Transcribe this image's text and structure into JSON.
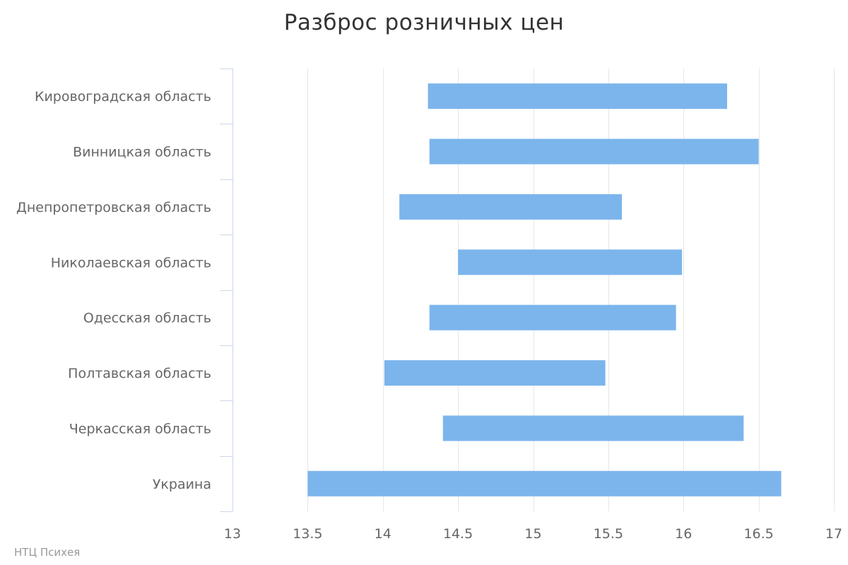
{
  "chart_data": {
    "type": "bar",
    "orientation": "horizontal",
    "range_bars": true,
    "title": "Разброс розничных цен",
    "categories": [
      "Кировоградская область",
      "Винницкая область",
      "Днепропетровская область",
      "Николаевская область",
      "Одесская область",
      "Полтавская область",
      "Черкасская область",
      "Украина"
    ],
    "series": [
      {
        "low": [
          14.3,
          14.31,
          14.11,
          14.5,
          14.31,
          14.01,
          14.4,
          13.5
        ],
        "high": [
          16.29,
          16.5,
          15.59,
          15.99,
          15.95,
          15.48,
          16.4,
          16.65
        ]
      }
    ],
    "xlim": [
      13,
      17
    ],
    "x_ticks": [
      "13",
      "13.5",
      "14",
      "14.5",
      "15",
      "15.5",
      "16",
      "16.5",
      "17"
    ],
    "x_tick_values": [
      13,
      13.5,
      14,
      14.5,
      15,
      15.5,
      16,
      16.5,
      17
    ],
    "grid": true,
    "bar_color": "#7cb5ec",
    "grid_color": "#e6e6e6",
    "axis_color": "#ccd6eb"
  },
  "credits": "НТЦ Психея"
}
